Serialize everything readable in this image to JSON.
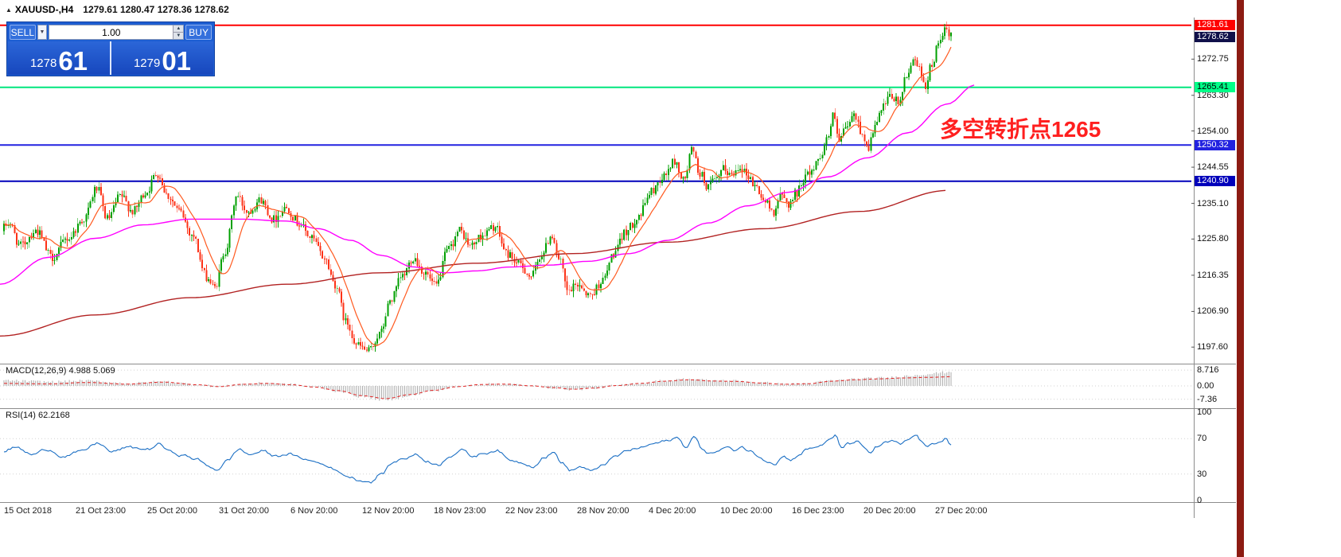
{
  "window": {
    "icon": "▲",
    "title": "XAUUSD-,H4",
    "ohlc": "1279.61 1280.47 1278.36 1278.62"
  },
  "trade_panel": {
    "sell_label": "SELL",
    "buy_label": "BUY",
    "volume": "1.00",
    "sell_price_small": "1278",
    "sell_price_big": "61",
    "buy_price_small": "1279",
    "buy_price_big": "01",
    "spin_up": "▲",
    "spin_down": "▼",
    "dropdown_caret": "▼"
  },
  "annotation": {
    "text": "多空转折点1265",
    "color": "#ff1f1f"
  },
  "price_scale": {
    "current": {
      "value": "1278.62",
      "price": 1278.62,
      "bg": "#10104a",
      "fg": "#ffffff"
    },
    "levels": [
      {
        "value": "1281.61",
        "price": 1281.61,
        "bg": "#ff0000",
        "fg": "#ffffff",
        "line_color": "#ff0000"
      },
      {
        "value": "1265.41",
        "price": 1265.41,
        "bg": "#00ff88",
        "fg": "#000000",
        "line_color": "#00e67e"
      },
      {
        "value": "1250.32",
        "price": 1250.32,
        "bg": "#2222e0",
        "fg": "#ffffff",
        "line_color": "#2222e0"
      },
      {
        "value": "1240.90",
        "price": 1240.9,
        "bg": "#0000bb",
        "fg": "#ffffff",
        "line_color": "#0000bb"
      }
    ],
    "ticks": [
      1272.75,
      1263.3,
      1254.0,
      1244.55,
      1235.1,
      1225.8,
      1216.35,
      1206.9,
      1197.6
    ]
  },
  "macd": {
    "label": "MACD(12,26,9) 4.988 5.069",
    "ticks": [
      {
        "label": "8.716",
        "v": 8.716
      },
      {
        "label": "0.00",
        "v": 0
      },
      {
        "label": "-7.36",
        "v": -7.36
      }
    ]
  },
  "rsi": {
    "label": "RSI(14) 62.2168",
    "ticks": [
      {
        "label": "100",
        "v": 100
      },
      {
        "label": "70",
        "v": 70
      },
      {
        "label": "30",
        "v": 30
      },
      {
        "label": "0",
        "v": 0
      }
    ]
  },
  "time_axis": [
    "15 Oct 2018",
    "21 Oct 23:00",
    "25 Oct 20:00",
    "31 Oct 20:00",
    "6 Nov 20:00",
    "12 Nov 20:00",
    "18 Nov 23:00",
    "22 Nov 23:00",
    "28 Nov 20:00",
    "4 Dec 20:00",
    "10 Dec 20:00",
    "16 Dec 23:00",
    "20 Dec 20:00",
    "27 Dec 20:00"
  ],
  "chart_data": {
    "type": "candlestick",
    "symbol": "XAUUSD-",
    "timeframe": "H4",
    "last_ohlc": {
      "open": 1279.61,
      "high": 1280.47,
      "low": 1278.36,
      "close": 1278.62
    },
    "y_axis": {
      "top_price": 1283.2,
      "bottom_price": 1193.7,
      "tick_prices": [
        1272.75,
        1263.3,
        1254.0,
        1244.55,
        1235.1,
        1225.8,
        1216.35,
        1206.9,
        1197.6
      ]
    },
    "x_labels": [
      "15 Oct 2018",
      "21 Oct 23:00",
      "25 Oct 20:00",
      "31 Oct 20:00",
      "6 Nov 20:00",
      "12 Nov 20:00",
      "18 Nov 23:00",
      "22 Nov 23:00",
      "28 Nov 20:00",
      "4 Dec 20:00",
      "10 Dec 20:00",
      "16 Dec 23:00",
      "20 Dec 20:00",
      "27 Dec 20:00"
    ],
    "horizontal_lines": [
      {
        "price": 1281.61,
        "color": "#ff0000"
      },
      {
        "price": 1265.41,
        "color": "#00e67e"
      },
      {
        "price": 1250.32,
        "color": "#2222e0"
      },
      {
        "price": 1240.9,
        "color": "#0000bb"
      }
    ],
    "annotation_text": "多空转折点1265",
    "macd": {
      "params": "12,26,9",
      "value": 4.988,
      "signal": 5.069,
      "scale_max": 8.716,
      "scale_min": -7.36
    },
    "rsi": {
      "period": 14,
      "value": 62.2168,
      "levels": [
        70,
        30
      ],
      "scale": [
        0,
        100
      ]
    },
    "ma_fast_period": 12,
    "price_path": [
      [
        0,
        1227
      ],
      [
        14,
        1230
      ],
      [
        28,
        1224
      ],
      [
        48,
        1228
      ],
      [
        68,
        1221
      ],
      [
        88,
        1226
      ],
      [
        108,
        1231
      ],
      [
        124,
        1239
      ],
      [
        138,
        1231
      ],
      [
        154,
        1237
      ],
      [
        170,
        1233
      ],
      [
        186,
        1238
      ],
      [
        200,
        1243
      ],
      [
        214,
        1237
      ],
      [
        228,
        1233
      ],
      [
        244,
        1227
      ],
      [
        262,
        1216
      ],
      [
        272,
        1213
      ],
      [
        286,
        1223
      ],
      [
        300,
        1237
      ],
      [
        314,
        1233
      ],
      [
        330,
        1236
      ],
      [
        346,
        1231
      ],
      [
        362,
        1234
      ],
      [
        378,
        1230
      ],
      [
        394,
        1226
      ],
      [
        410,
        1221
      ],
      [
        424,
        1214
      ],
      [
        438,
        1204
      ],
      [
        452,
        1198
      ],
      [
        466,
        1196.5
      ],
      [
        480,
        1201
      ],
      [
        494,
        1210
      ],
      [
        508,
        1216
      ],
      [
        522,
        1221
      ],
      [
        536,
        1217
      ],
      [
        550,
        1213.5
      ],
      [
        566,
        1223
      ],
      [
        580,
        1228
      ],
      [
        594,
        1224
      ],
      [
        610,
        1227
      ],
      [
        624,
        1229
      ],
      [
        640,
        1222
      ],
      [
        656,
        1219
      ],
      [
        670,
        1216
      ],
      [
        684,
        1222
      ],
      [
        696,
        1227
      ],
      [
        706,
        1220
      ],
      [
        716,
        1212
      ],
      [
        730,
        1214
      ],
      [
        744,
        1211
      ],
      [
        760,
        1215
      ],
      [
        774,
        1222
      ],
      [
        790,
        1228
      ],
      [
        806,
        1232
      ],
      [
        820,
        1238
      ],
      [
        836,
        1242
      ],
      [
        850,
        1246
      ],
      [
        862,
        1241
      ],
      [
        872,
        1249
      ],
      [
        882,
        1243
      ],
      [
        892,
        1239.5
      ],
      [
        902,
        1241
      ],
      [
        912,
        1244
      ],
      [
        922,
        1242.5
      ],
      [
        932,
        1245
      ],
      [
        942,
        1242.5
      ],
      [
        952,
        1239.5
      ],
      [
        964,
        1235.5
      ],
      [
        974,
        1233
      ],
      [
        984,
        1237
      ],
      [
        994,
        1235
      ],
      [
        1004,
        1238
      ],
      [
        1014,
        1242
      ],
      [
        1024,
        1244
      ],
      [
        1034,
        1248
      ],
      [
        1044,
        1253
      ],
      [
        1050,
        1258
      ],
      [
        1057,
        1251
      ],
      [
        1066,
        1255
      ],
      [
        1076,
        1258
      ],
      [
        1086,
        1253.5
      ],
      [
        1093,
        1249.5
      ],
      [
        1102,
        1255
      ],
      [
        1112,
        1260
      ],
      [
        1122,
        1263
      ],
      [
        1132,
        1261.5
      ],
      [
        1142,
        1268
      ],
      [
        1151,
        1273.5
      ],
      [
        1159,
        1269.5
      ],
      [
        1166,
        1266
      ],
      [
        1173,
        1271
      ],
      [
        1181,
        1276
      ],
      [
        1189,
        1280.5
      ],
      [
        1195,
        1278.6
      ]
    ],
    "ma_mid_path": [
      [
        0,
        1214
      ],
      [
        60,
        1221
      ],
      [
        120,
        1226
      ],
      [
        180,
        1229.5
      ],
      [
        240,
        1231
      ],
      [
        300,
        1231
      ],
      [
        360,
        1230.5
      ],
      [
        400,
        1228.5
      ],
      [
        440,
        1225.5
      ],
      [
        480,
        1221.5
      ],
      [
        520,
        1218.5
      ],
      [
        560,
        1217
      ],
      [
        600,
        1217.5
      ],
      [
        640,
        1218.5
      ],
      [
        690,
        1219
      ],
      [
        740,
        1220
      ],
      [
        790,
        1222
      ],
      [
        840,
        1225.5
      ],
      [
        890,
        1230
      ],
      [
        940,
        1234.5
      ],
      [
        990,
        1238
      ],
      [
        1040,
        1242
      ],
      [
        1090,
        1247
      ],
      [
        1140,
        1253.5
      ],
      [
        1190,
        1261
      ],
      [
        1225,
        1266
      ]
    ],
    "ma_slow_path": [
      [
        0,
        1200.5
      ],
      [
        120,
        1206
      ],
      [
        240,
        1210.5
      ],
      [
        360,
        1214
      ],
      [
        480,
        1217
      ],
      [
        600,
        1219.5
      ],
      [
        720,
        1222
      ],
      [
        840,
        1225
      ],
      [
        960,
        1228.5
      ],
      [
        1080,
        1233
      ],
      [
        1192,
        1238.5
      ]
    ],
    "macd_signal_path": [
      [
        0,
        1.4
      ],
      [
        60,
        1.1
      ],
      [
        110,
        1.9
      ],
      [
        160,
        1.0
      ],
      [
        205,
        2.1
      ],
      [
        250,
        0.6
      ],
      [
        275,
        -0.4
      ],
      [
        305,
        0.9
      ],
      [
        335,
        1.4
      ],
      [
        365,
        0.7
      ],
      [
        395,
        -0.6
      ],
      [
        425,
        -2.6
      ],
      [
        455,
        -5.4
      ],
      [
        485,
        -7.0
      ],
      [
        515,
        -4.8
      ],
      [
        545,
        -2.4
      ],
      [
        575,
        -0.4
      ],
      [
        605,
        0.8
      ],
      [
        635,
        1.0
      ],
      [
        665,
        0.1
      ],
      [
        695,
        -0.9
      ],
      [
        720,
        -1.8
      ],
      [
        745,
        -1.2
      ],
      [
        775,
        0.2
      ],
      [
        805,
        1.4
      ],
      [
        835,
        2.6
      ],
      [
        865,
        3.4
      ],
      [
        895,
        2.7
      ],
      [
        925,
        2.5
      ],
      [
        955,
        1.6
      ],
      [
        985,
        0.9
      ],
      [
        1015,
        1.2
      ],
      [
        1045,
        2.6
      ],
      [
        1075,
        3.4
      ],
      [
        1105,
        3.9
      ],
      [
        1135,
        4.4
      ],
      [
        1165,
        4.7
      ],
      [
        1195,
        5.07
      ]
    ],
    "rsi_path": [
      [
        0,
        55
      ],
      [
        20,
        60
      ],
      [
        40,
        52
      ],
      [
        60,
        58
      ],
      [
        80,
        50
      ],
      [
        100,
        55
      ],
      [
        124,
        65
      ],
      [
        140,
        55
      ],
      [
        160,
        60
      ],
      [
        186,
        58
      ],
      [
        200,
        64
      ],
      [
        214,
        55
      ],
      [
        230,
        51
      ],
      [
        246,
        47
      ],
      [
        262,
        39
      ],
      [
        272,
        35
      ],
      [
        286,
        45
      ],
      [
        300,
        58
      ],
      [
        314,
        52
      ],
      [
        330,
        56
      ],
      [
        346,
        50
      ],
      [
        362,
        53
      ],
      [
        378,
        48
      ],
      [
        394,
        44
      ],
      [
        410,
        40
      ],
      [
        424,
        33
      ],
      [
        438,
        27
      ],
      [
        452,
        23
      ],
      [
        466,
        21
      ],
      [
        480,
        31
      ],
      [
        494,
        43
      ],
      [
        508,
        48
      ],
      [
        522,
        52
      ],
      [
        536,
        45
      ],
      [
        550,
        40
      ],
      [
        566,
        51
      ],
      [
        580,
        57
      ],
      [
        594,
        50
      ],
      [
        610,
        54
      ],
      [
        624,
        57
      ],
      [
        640,
        46
      ],
      [
        656,
        43
      ],
      [
        670,
        39
      ],
      [
        684,
        49
      ],
      [
        696,
        54
      ],
      [
        706,
        43
      ],
      [
        716,
        34
      ],
      [
        730,
        38
      ],
      [
        744,
        33
      ],
      [
        760,
        42
      ],
      [
        774,
        50
      ],
      [
        790,
        57
      ],
      [
        806,
        60
      ],
      [
        820,
        64
      ],
      [
        836,
        67
      ],
      [
        850,
        71
      ],
      [
        862,
        61
      ],
      [
        872,
        72
      ],
      [
        882,
        59
      ],
      [
        892,
        53
      ],
      [
        902,
        56
      ],
      [
        912,
        60
      ],
      [
        922,
        57
      ],
      [
        932,
        61
      ],
      [
        942,
        56
      ],
      [
        952,
        51
      ],
      [
        964,
        45
      ],
      [
        974,
        42
      ],
      [
        984,
        50
      ],
      [
        994,
        46
      ],
      [
        1004,
        52
      ],
      [
        1014,
        58
      ],
      [
        1024,
        60
      ],
      [
        1034,
        64
      ],
      [
        1044,
        69
      ],
      [
        1050,
        73
      ],
      [
        1057,
        60
      ],
      [
        1066,
        64
      ],
      [
        1076,
        67
      ],
      [
        1086,
        59
      ],
      [
        1093,
        54
      ],
      [
        1102,
        61
      ],
      [
        1112,
        65
      ],
      [
        1122,
        67
      ],
      [
        1132,
        63
      ],
      [
        1142,
        69
      ],
      [
        1151,
        74
      ],
      [
        1159,
        66
      ],
      [
        1166,
        60
      ],
      [
        1173,
        64
      ],
      [
        1181,
        68
      ],
      [
        1189,
        71
      ],
      [
        1195,
        62.2
      ]
    ],
    "colors": {
      "candle_up": "#00a000",
      "candle_down": "#fd3217",
      "ma_fast": "#ff5a20",
      "ma_mid": "#ff00ff",
      "ma_slow": "#b22222",
      "macd_bar": "#ababab",
      "macd_signal": "#e02424",
      "rsi_line": "#1b6fc4"
    }
  }
}
